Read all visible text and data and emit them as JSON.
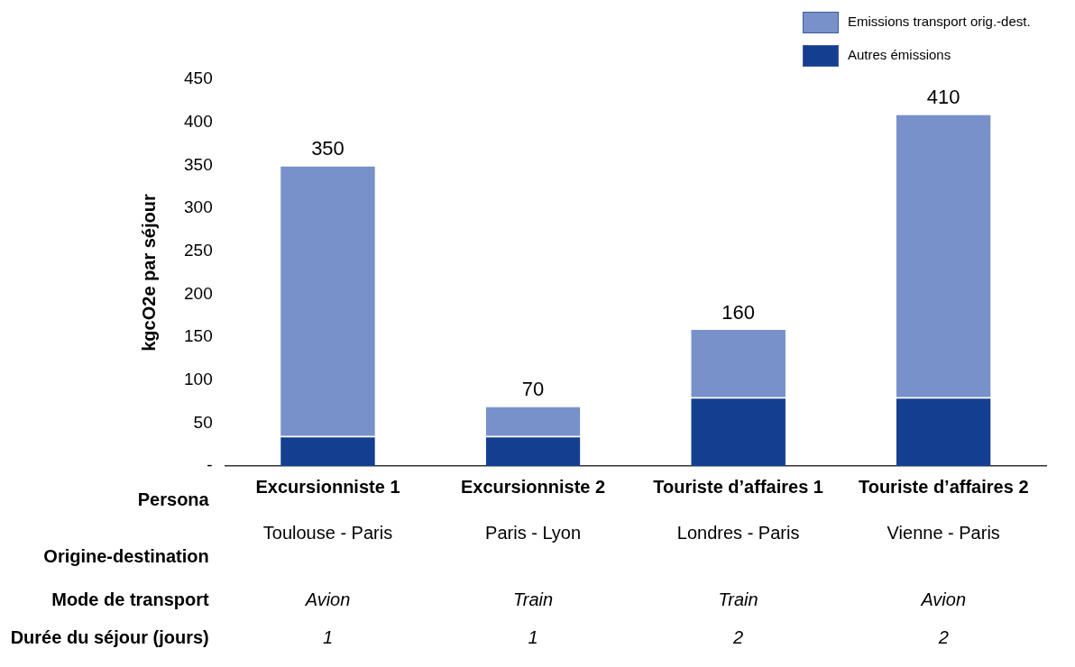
{
  "chart_data": {
    "type": "bar",
    "stacked": true,
    "categories": [
      "Excursionniste 1",
      "Excursionniste 2",
      "Touriste d’affaires 1",
      "Touriste d’affaires 2"
    ],
    "series": [
      {
        "name": "Autres émissions",
        "color": "#143f91",
        "values": [
          35,
          35,
          80,
          80
        ]
      },
      {
        "name": "Emissions transport orig.-dest.",
        "color": "#7891ca",
        "values": [
          315,
          35,
          80,
          330
        ]
      }
    ],
    "totals": [
      "350",
      "70",
      "160",
      "410"
    ],
    "ylabel": "kgcO2e par séjour",
    "xlabel": "Persona",
    "ylim": [
      0,
      450
    ],
    "yticks": [
      {
        "value": 0,
        "label": "-"
      },
      50,
      100,
      150,
      200,
      250,
      300,
      350,
      400,
      450
    ],
    "grid": false,
    "legend": "top right",
    "annotations": [
      "Origine-destination",
      "Toulouse - Paris",
      "Paris - Lyon",
      "Londres - Paris",
      "Vienne - Paris",
      "Mode de transport",
      "Avion",
      "Train",
      "Train",
      "Avion",
      "Durée du séjour (jours)",
      "1",
      "1",
      "2",
      "2"
    ]
  }
}
